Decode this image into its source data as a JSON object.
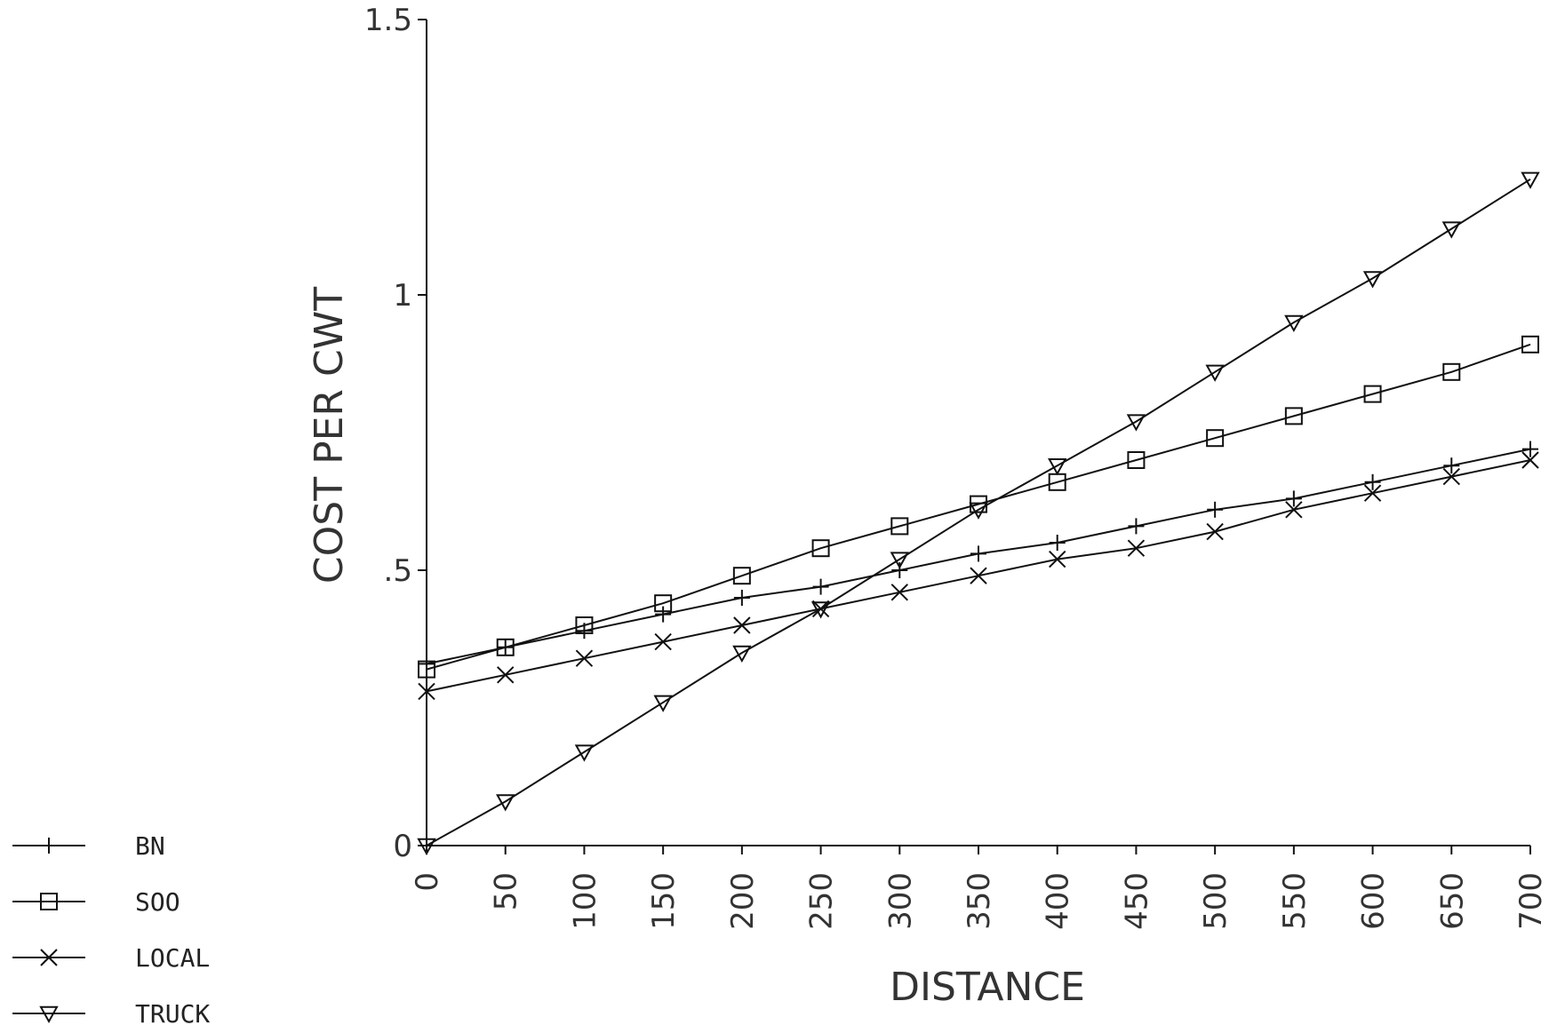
{
  "chart_data": {
    "type": "line",
    "xlabel": "DISTANCE",
    "ylabel": "COST PER CWT",
    "xlim": [
      0,
      700
    ],
    "ylim": [
      0,
      1.5
    ],
    "x_ticks": [
      "0",
      "50",
      "100",
      "150",
      "200",
      "250",
      "300",
      "350",
      "400",
      "450",
      "500",
      "550",
      "600",
      "650",
      "700"
    ],
    "y_ticks": [
      {
        "value": 0,
        "label": "0"
      },
      {
        "value": 0.5,
        "label": ".5"
      },
      {
        "value": 1,
        "label": "1"
      },
      {
        "value": 1.5,
        "label": "1.5"
      }
    ],
    "grid": false,
    "legend_position": "bottom-left",
    "x": [
      0,
      50,
      100,
      150,
      200,
      250,
      300,
      350,
      400,
      450,
      500,
      550,
      600,
      650,
      700
    ],
    "series": [
      {
        "name": "BN",
        "marker": "plus",
        "values": [
          0.33,
          0.36,
          0.39,
          0.42,
          0.45,
          0.47,
          0.5,
          0.53,
          0.55,
          0.58,
          0.61,
          0.63,
          0.66,
          0.69,
          0.72
        ]
      },
      {
        "name": "SOO",
        "marker": "square",
        "values": [
          0.32,
          0.36,
          0.4,
          0.44,
          0.49,
          0.54,
          0.58,
          0.62,
          0.66,
          0.7,
          0.74,
          0.78,
          0.82,
          0.86,
          0.91
        ]
      },
      {
        "name": "LOCAL",
        "marker": "x",
        "values": [
          0.28,
          0.31,
          0.34,
          0.37,
          0.4,
          0.43,
          0.46,
          0.49,
          0.52,
          0.54,
          0.57,
          0.61,
          0.64,
          0.67,
          0.7
        ]
      },
      {
        "name": "TRUCK",
        "marker": "triangle-down",
        "values": [
          0.0,
          0.08,
          0.17,
          0.26,
          0.35,
          0.43,
          0.52,
          0.61,
          0.69,
          0.77,
          0.86,
          0.95,
          1.03,
          1.12,
          1.21
        ]
      }
    ]
  }
}
